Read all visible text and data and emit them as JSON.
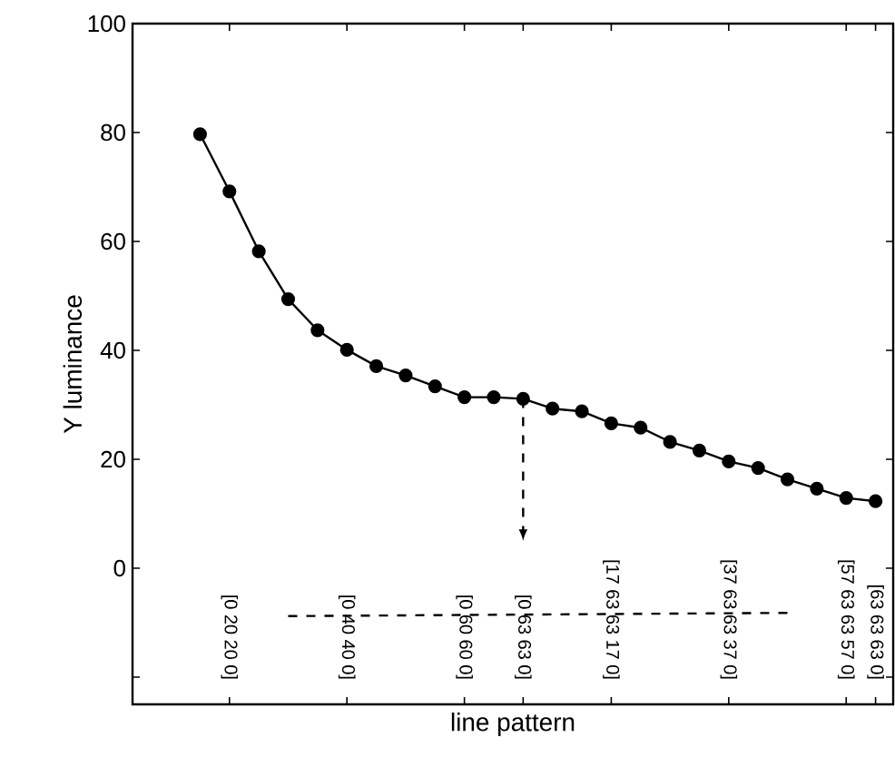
{
  "chart_data": {
    "type": "line",
    "xlabel": "line pattern",
    "ylabel": "Y luminance",
    "categories": [
      null,
      "[0 20 20 0]",
      null,
      null,
      null,
      "[0 40 40 0]",
      null,
      null,
      null,
      "[0 60 60 0]",
      null,
      "[0 63 63 0]",
      null,
      null,
      "[17 63 63 17 0]",
      null,
      null,
      null,
      "[37 63 63 37 0]",
      null,
      null,
      null,
      "[57 63 63 57 0]",
      "[63 63 63 0]"
    ],
    "ylim": [
      -25,
      100
    ],
    "yticks": [
      {
        "value": -20,
        "label": null
      },
      0,
      20,
      40,
      60,
      80,
      100
    ],
    "series": [
      {
        "color": "#000000",
        "marker": "circle",
        "line_style": "solid",
        "values": [
          79.7,
          69.2,
          58.2,
          49.4,
          43.7,
          40.1,
          37.1,
          35.4,
          33.4,
          31.4,
          31.4,
          31.1,
          29.3,
          28.8,
          26.6,
          25.8,
          23.2,
          21.6,
          19.6,
          18.4,
          16.3,
          14.6,
          12.9,
          12.3
        ]
      },
      {
        "color": "#000000",
        "marker": "none",
        "line_style": "dashed",
        "values": [
          null,
          null,
          null,
          -8.8,
          null,
          null,
          null,
          null,
          null,
          null,
          null,
          null,
          null,
          null,
          null,
          null,
          null,
          null,
          null,
          null,
          -8.2,
          null,
          null,
          null
        ]
      }
    ]
  }
}
